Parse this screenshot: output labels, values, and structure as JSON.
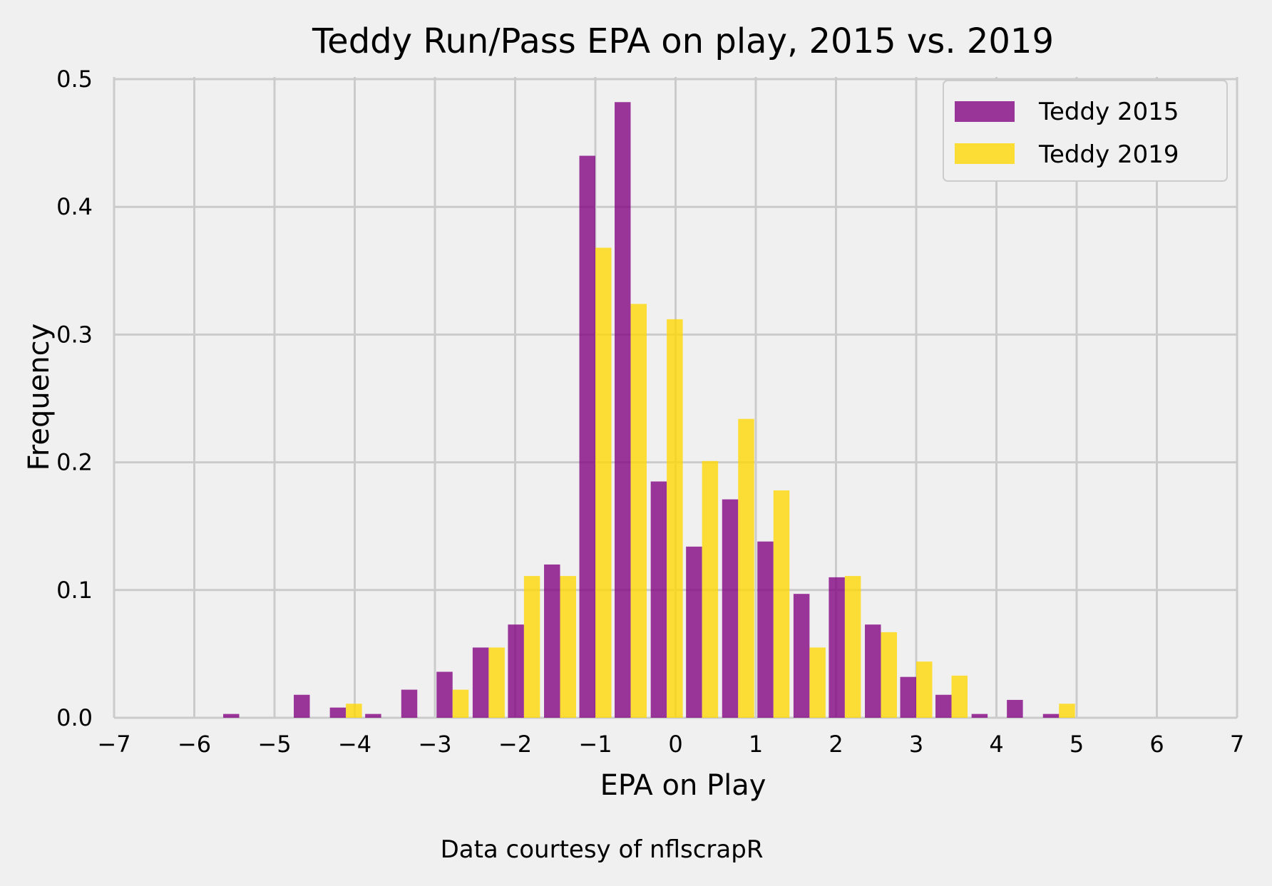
{
  "chart_data": {
    "type": "bar",
    "title": "Teddy Run/Pass EPA on play, 2015 vs. 2019",
    "xlabel": "EPA on Play",
    "ylabel": "Frequency",
    "caption": "Data courtesy of nflscrapR",
    "xlim": [
      -7,
      7
    ],
    "ylim": [
      0,
      0.5
    ],
    "grid": true,
    "legend_position": "top-right",
    "xticks": [
      -7,
      -6,
      -5,
      -4,
      -3,
      -2,
      -1,
      0,
      1,
      2,
      3,
      4,
      5,
      6,
      7
    ],
    "xtick_labels": [
      "−7",
      "−6",
      "−5",
      "−4",
      "−3",
      "−2",
      "−1",
      "0",
      "1",
      "2",
      "3",
      "4",
      "5",
      "6",
      "7"
    ],
    "yticks": [
      0.0,
      0.1,
      0.2,
      0.3,
      0.4,
      0.5
    ],
    "ytick_labels": [
      "0.0",
      "0.1",
      "0.2",
      "0.3",
      "0.4",
      "0.5"
    ],
    "bin_width": 0.444,
    "x": [
      -5.44,
      -5.0,
      -4.56,
      -4.11,
      -3.67,
      -3.22,
      -2.78,
      -2.33,
      -1.89,
      -1.44,
      -1.0,
      -0.56,
      -0.11,
      0.33,
      0.78,
      1.22,
      1.67,
      2.11,
      2.56,
      3.0,
      3.44,
      3.89,
      4.33,
      4.78
    ],
    "series": [
      {
        "name": "Teddy 2015",
        "color": "#800080",
        "values": [
          0.003,
          0.0,
          0.018,
          0.008,
          0.003,
          0.022,
          0.036,
          0.055,
          0.073,
          0.12,
          0.44,
          0.482,
          0.185,
          0.134,
          0.171,
          0.138,
          0.097,
          0.11,
          0.073,
          0.032,
          0.018,
          0.003,
          0.014,
          0.003
        ]
      },
      {
        "name": "Teddy 2019",
        "color": "#FFD700",
        "values": [
          0.0,
          0.0,
          0.0,
          0.011,
          0.0,
          0.0,
          0.022,
          0.055,
          0.111,
          0.111,
          0.368,
          0.324,
          0.312,
          0.201,
          0.234,
          0.178,
          0.055,
          0.111,
          0.067,
          0.044,
          0.033,
          0.0,
          0.0,
          0.011
        ]
      }
    ]
  }
}
